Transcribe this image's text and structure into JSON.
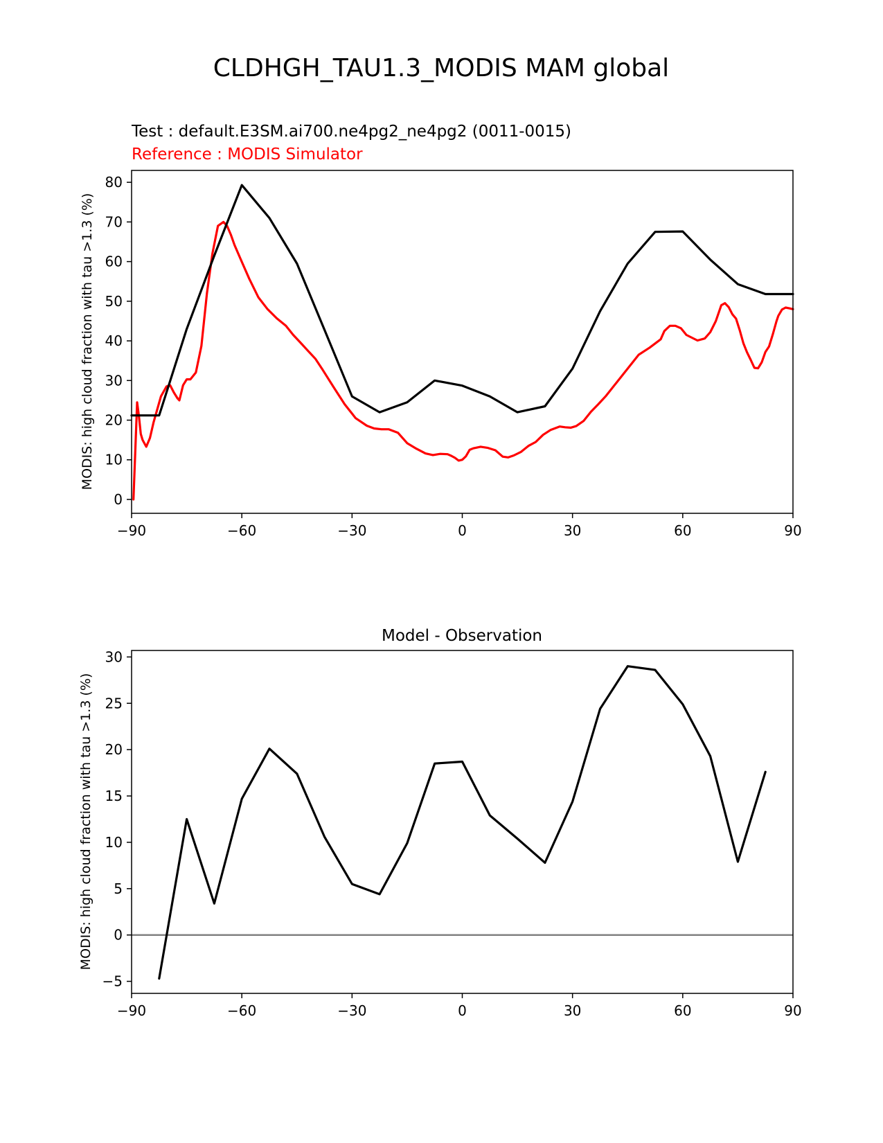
{
  "figure_title": "CLDHGH_TAU1.3_MODIS MAM global",
  "colors": {
    "test": "#000000",
    "reference": "#ff0000",
    "zero_line": "#808080"
  },
  "chart_data": [
    {
      "type": "line",
      "test_label": "Test : default.E3SM.ai700.ne4pg2_ne4pg2 (0011-0015)",
      "reference_label": "Reference : MODIS Simulator",
      "ylabel": "MODIS: high cloud fraction with tau >1.3 (%)",
      "xlim": [
        -90,
        90
      ],
      "ylim": [
        -3.5,
        83
      ],
      "xticks": [
        -90,
        -60,
        -30,
        0,
        30,
        60,
        90
      ],
      "xtick_labels": [
        "−90",
        "−60",
        "−30",
        "0",
        "30",
        "60",
        "90"
      ],
      "yticks": [
        0,
        10,
        20,
        30,
        40,
        50,
        60,
        70,
        80
      ],
      "ytick_labels": [
        "0",
        "10",
        "20",
        "30",
        "40",
        "50",
        "60",
        "70",
        "80"
      ],
      "series": [
        {
          "role": "test",
          "x": [
            -90,
            -82.5,
            -75,
            -67.5,
            -60,
            -52.5,
            -45,
            -37.5,
            -30,
            -22.5,
            -15,
            -7.5,
            0,
            7.5,
            15,
            22.5,
            30,
            37.5,
            45,
            52.5,
            60,
            67.5,
            75,
            82.5,
            90
          ],
          "values": [
            21.2,
            21.2,
            43,
            61.5,
            79.3,
            71,
            59.5,
            42.8,
            26,
            22,
            24.5,
            30,
            28.7,
            26,
            22,
            23.5,
            33,
            47.5,
            59.5,
            67.5,
            67.6,
            60.5,
            54.3,
            51.8,
            51.8
          ]
        },
        {
          "role": "reference",
          "x": [
            -89.5,
            -89,
            -88.5,
            -88,
            -87.5,
            -87,
            -86,
            -85,
            -84,
            -82,
            -80.5,
            -79.5,
            -78.5,
            -77.5,
            -77,
            -76,
            -75,
            -74,
            -72.5,
            -71,
            -69.5,
            -68,
            -66.5,
            -65,
            -64,
            -63,
            -62,
            -60.5,
            -58,
            -55.5,
            -53,
            -50.5,
            -48,
            -46,
            -44,
            -42,
            -40,
            -38,
            -35,
            -32,
            -29,
            -26,
            -24,
            -22,
            -20,
            -17.5,
            -15,
            -12.5,
            -10,
            -8,
            -6,
            -4,
            -3,
            -2,
            -1,
            0,
            1,
            2,
            3,
            5,
            7,
            9,
            11,
            12.5,
            14,
            16,
            18,
            20,
            22,
            24,
            26.5,
            28,
            29.5,
            31,
            33,
            35,
            37,
            39,
            42,
            45,
            48,
            51,
            54,
            55,
            56.5,
            58,
            59.5,
            61,
            62.5,
            64,
            66,
            67.5,
            69,
            70.5,
            71.5,
            72.5,
            73.5,
            74.5,
            75.5,
            76.5,
            77.5,
            78.5,
            79.5,
            80.5,
            81.5,
            82.5,
            83.5,
            84.5,
            85.5,
            86,
            87,
            88,
            89,
            90
          ],
          "values": [
            0,
            12,
            24.5,
            21,
            16.5,
            15,
            13.3,
            15.5,
            19.5,
            26,
            28.5,
            28.8,
            27,
            25.5,
            25,
            28.8,
            30.3,
            30.3,
            32,
            38.7,
            52,
            62,
            69,
            70,
            69,
            66.8,
            64.2,
            61,
            55.7,
            51,
            48,
            45.7,
            43.8,
            41.5,
            39.5,
            37.5,
            35.5,
            32.7,
            28.3,
            24,
            20.5,
            18.6,
            17.9,
            17.7,
            17.7,
            16.8,
            14.2,
            12.8,
            11.6,
            11.2,
            11.5,
            11.4,
            11,
            10.5,
            9.8,
            10,
            10.9,
            12.5,
            12.9,
            13.3,
            13,
            12.4,
            10.8,
            10.6,
            11.1,
            12,
            13.5,
            14.5,
            16.3,
            17.5,
            18.4,
            18.2,
            18.1,
            18.5,
            19.8,
            22.1,
            24,
            26,
            29.5,
            33,
            36.5,
            38.3,
            40.4,
            42.5,
            43.8,
            43.8,
            43.2,
            41.5,
            40.8,
            40.1,
            40.6,
            42.2,
            45,
            49,
            49.5,
            48.5,
            46.7,
            45.6,
            42.7,
            39.4,
            37.1,
            35.2,
            33.2,
            33.1,
            34.6,
            37.2,
            38.6,
            41.6,
            44.9,
            46.3,
            47.9,
            48.4,
            48.2,
            48
          ]
        }
      ]
    },
    {
      "type": "line",
      "title": "Model - Observation",
      "ylabel": "MODIS: high cloud fraction with tau >1.3 (%)",
      "xlim": [
        -90,
        90
      ],
      "ylim": [
        -6.3,
        30.7
      ],
      "xticks": [
        -90,
        -60,
        -30,
        0,
        30,
        60,
        90
      ],
      "xtick_labels": [
        "−90",
        "−60",
        "−30",
        "0",
        "30",
        "60",
        "90"
      ],
      "yticks": [
        -5,
        0,
        5,
        10,
        15,
        20,
        25,
        30
      ],
      "ytick_labels": [
        "−5",
        "0",
        "5",
        "10",
        "15",
        "20",
        "25",
        "30"
      ],
      "zero_line": 0,
      "series": [
        {
          "role": "difference",
          "x": [
            -82.5,
            -75,
            -67.5,
            -60,
            -52.5,
            -45,
            -37.5,
            -30,
            -22.5,
            -15,
            -7.5,
            0,
            7.5,
            15,
            22.5,
            30,
            37.5,
            45,
            52.5,
            60,
            67.5,
            75,
            82.5
          ],
          "values": [
            -4.7,
            12.5,
            3.4,
            14.7,
            20.1,
            17.4,
            10.6,
            5.5,
            4.4,
            9.9,
            18.5,
            18.7,
            12.9,
            10.4,
            7.8,
            14.4,
            24.4,
            29,
            28.6,
            24.9,
            19.3,
            7.9,
            17.6
          ]
        }
      ]
    }
  ]
}
